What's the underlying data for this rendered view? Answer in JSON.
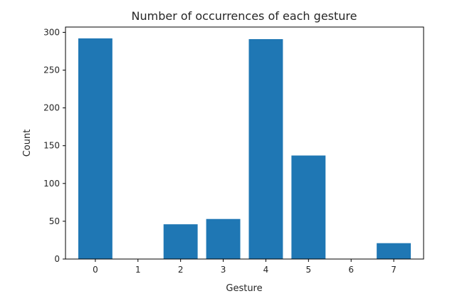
{
  "chart_data": {
    "type": "bar",
    "title": "Number of occurrences of each gesture",
    "xlabel": "Gesture",
    "ylabel": "Count",
    "categories": [
      "0",
      "1",
      "2",
      "3",
      "4",
      "5",
      "6",
      "7"
    ],
    "values": [
      292,
      0,
      46,
      53,
      291,
      137,
      0,
      21
    ],
    "ylim": [
      0,
      307
    ],
    "yticks": [
      0,
      50,
      100,
      150,
      200,
      250,
      300
    ],
    "bar_color": "#1f77b4",
    "grid": false,
    "legend": "none"
  }
}
